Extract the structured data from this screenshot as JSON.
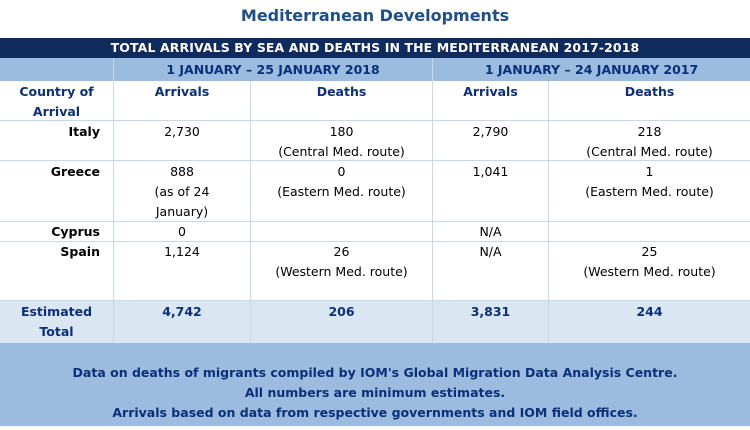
{
  "title": "Mediterranean Developments",
  "band": "TOTAL ARRIVALS BY SEA AND DEATHS IN THE MEDITERRANEAN 2017-2018",
  "period_2018": "1 JANUARY – 25 JANUARY 2018",
  "period_2017": "1 JANUARY – 24 JANUARY 2017",
  "columns": {
    "country_line1": "Country of",
    "country_line2": "Arrival",
    "arrivals": "Arrivals",
    "deaths": "Deaths"
  },
  "rows": [
    {
      "country": "Italy",
      "arr2018": [
        "2,730"
      ],
      "dea2018": [
        "180",
        "(Central Med. route)"
      ],
      "arr2017": [
        "2,790"
      ],
      "dea2017": [
        "218",
        "(Central Med. route)"
      ]
    },
    {
      "country": "Greece",
      "arr2018": [
        "888",
        "(as of 24",
        "January)"
      ],
      "dea2018": [
        "0",
        "(Eastern Med. route)"
      ],
      "arr2017": [
        "1,041"
      ],
      "dea2017": [
        "1",
        "(Eastern Med. route)"
      ]
    },
    {
      "country": "Cyprus",
      "arr2018": [
        "0"
      ],
      "dea2018": [
        ""
      ],
      "arr2017": [
        "N/A"
      ],
      "dea2017": [
        ""
      ]
    },
    {
      "country": "Spain",
      "arr2018": [
        "1,124"
      ],
      "dea2018": [
        "26",
        "(Western Med. route)"
      ],
      "arr2017": [
        "N/A"
      ],
      "dea2017": [
        "25",
        "(Western Med. route)"
      ]
    }
  ],
  "total": {
    "label_line1": "Estimated",
    "label_line2": "Total",
    "arr2018": "4,742",
    "dea2018": "206",
    "arr2017": "3,831",
    "dea2017": "244"
  },
  "footer": [
    "Data on deaths of migrants compiled by IOM's Global Migration Data Analysis Centre.",
    "All numbers are minimum estimates.",
    "Arrivals based on data from respective governments and IOM field offices."
  ]
}
